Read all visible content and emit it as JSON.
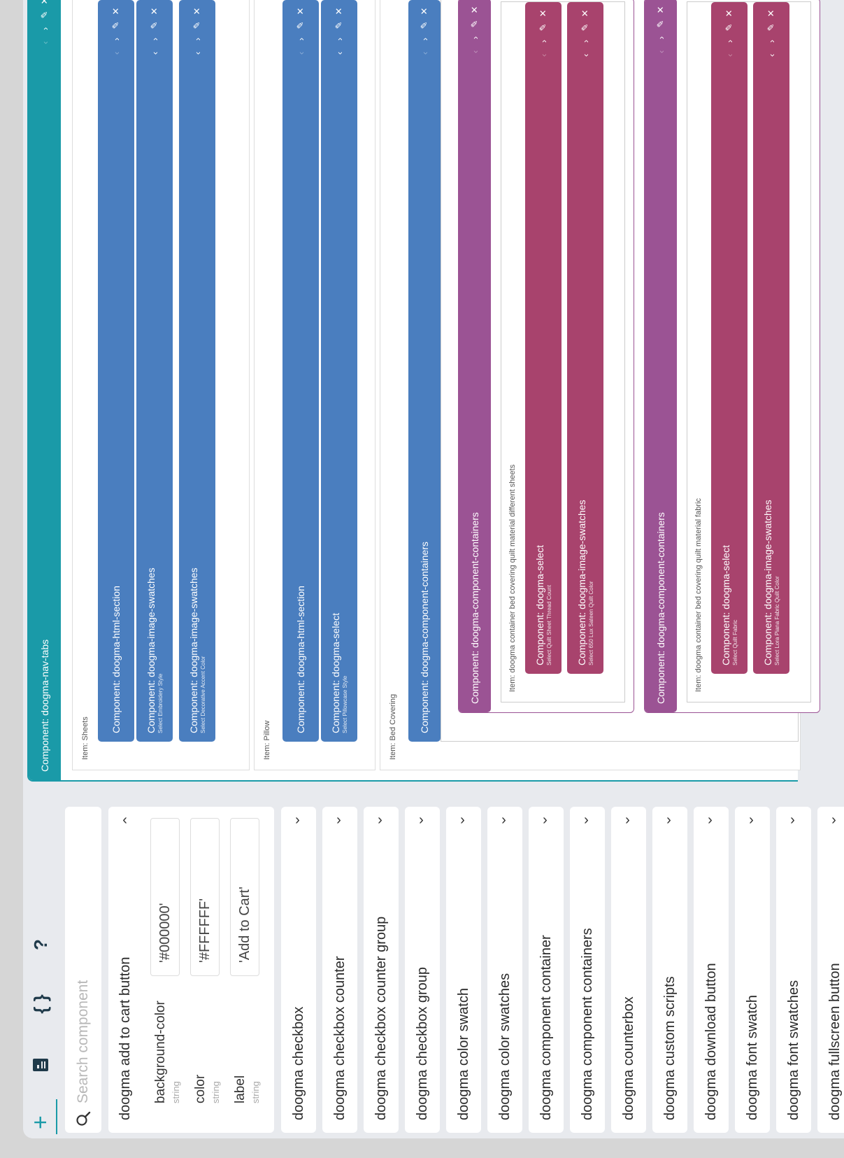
{
  "toolbar": {
    "plus_icon": "+",
    "file_icon": "file-icon",
    "braces_icon": "{ }",
    "help_icon": "?",
    "preview_icon": "eye-icon"
  },
  "search": {
    "placeholder": "Search component"
  },
  "components": [
    {
      "name": "doogma add to cart button",
      "expanded": true
    },
    {
      "name": "doogma checkbox"
    },
    {
      "name": "doogma checkbox counter"
    },
    {
      "name": "doogma checkbox counter group"
    },
    {
      "name": "doogma checkbox group"
    },
    {
      "name": "doogma color swatch"
    },
    {
      "name": "doogma color swatches"
    },
    {
      "name": "doogma component container"
    },
    {
      "name": "doogma component containers"
    },
    {
      "name": "doogma counterbox"
    },
    {
      "name": "doogma custom scripts"
    },
    {
      "name": "doogma download button"
    },
    {
      "name": "doogma font swatch"
    },
    {
      "name": "doogma font swatches"
    },
    {
      "name": "doogma fullscreen button"
    }
  ],
  "props": [
    {
      "name": "background-color",
      "type": "string",
      "value": "'#000000'"
    },
    {
      "name": "color",
      "type": "string",
      "value": "'#FFFFFF'"
    },
    {
      "name": "label",
      "type": "string",
      "value": "'Add to Cart'"
    }
  ],
  "canvas": {
    "nav_title": "Component: doogma-nav-tabs",
    "items": [
      {
        "label": "Item: Sheets",
        "components": [
          {
            "title": "Component: doogma-html-section",
            "sub": ""
          },
          {
            "title": "Component: doogma-image-swatches",
            "sub": "Select Embroidery Style"
          },
          {
            "title": "Component: doogma-image-swatches",
            "sub": "Select Decorative Accent Color"
          }
        ]
      },
      {
        "label": "Item: Pillow",
        "components": [
          {
            "title": "Component: doogma-html-section",
            "sub": ""
          },
          {
            "title": "Component: doogma-select",
            "sub": "Select Pillowcase Style"
          }
        ]
      },
      {
        "label": "Item: Bed Covering",
        "components": [
          {
            "title": "Component: doogma-component-containers",
            "sub": ""
          }
        ]
      }
    ],
    "bed_label": "Item: doogma container bed covering quilt",
    "containers": [
      {
        "title": "Component: doogma-component-containers",
        "inner_label": "Item: doogma container bed covering quilt material different sheets",
        "children": [
          {
            "title": "Component: doogma-select",
            "sub": "Select Quilt Sheet Thread Count"
          },
          {
            "title": "Component: doogma-image-swatches",
            "sub": "Select 650 Lux Sateen Quilt Color"
          }
        ]
      },
      {
        "title": "Component: doogma-component-containers",
        "inner_label": "Item: doogma container bed covering quilt material fabric",
        "children": [
          {
            "title": "Component: doogma-select",
            "sub": "Select Quilt Fabric"
          },
          {
            "title": "Component: doogma-image-swatches",
            "sub": "Select Lora Piana Fabric Quilt Color"
          }
        ]
      }
    ],
    "controls": {
      "prev": "‹",
      "next": "›",
      "edit": "✎",
      "close": "✕"
    }
  },
  "colors": {
    "teal": "#1a9aa8",
    "blue": "#4a7ebf",
    "purple": "#9b5394",
    "crimson": "#a8436d"
  }
}
